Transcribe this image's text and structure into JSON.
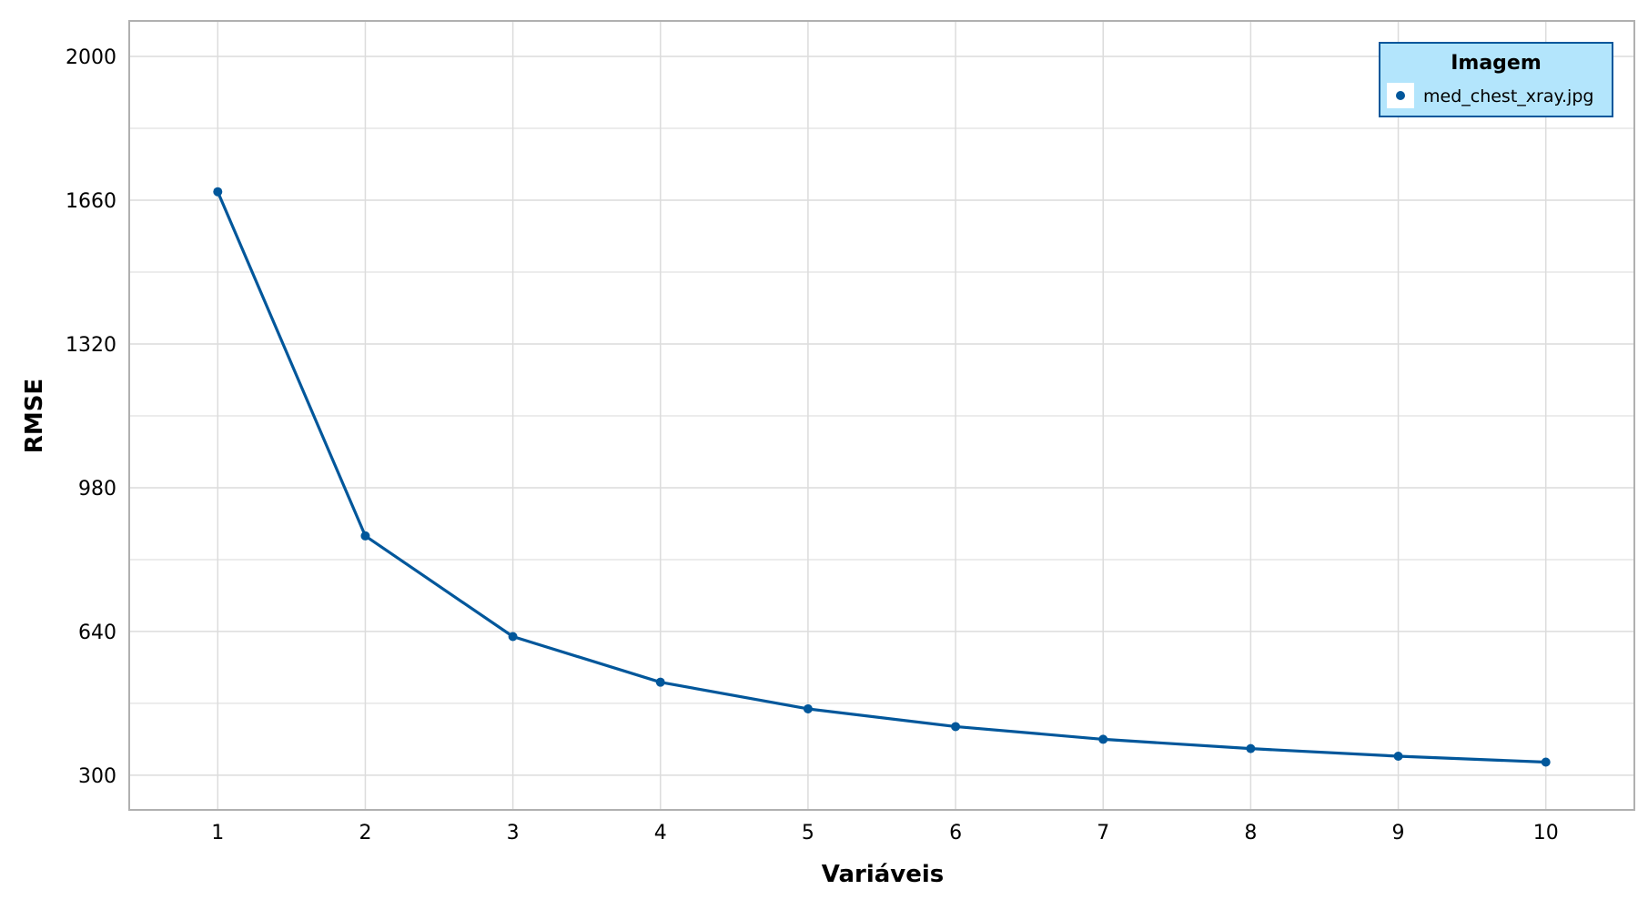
{
  "chart_data": {
    "type": "line",
    "title": "",
    "xlabel": "Variáveis",
    "ylabel": "RMSE",
    "x": [
      1,
      2,
      3,
      4,
      5,
      6,
      7,
      8,
      9,
      10
    ],
    "xlim": [
      0.4,
      10.6
    ],
    "ylim": [
      218,
      2084
    ],
    "x_ticks": [
      "1",
      "2",
      "3",
      "4",
      "5",
      "6",
      "7",
      "8",
      "9",
      "10"
    ],
    "y_ticks": [
      "300",
      "640",
      "980",
      "1320",
      "1660",
      "2000"
    ],
    "y_tick_values": [
      300,
      640,
      980,
      1320,
      1660,
      2000
    ],
    "y_minor_values": [
      470,
      810,
      1150,
      1490,
      1830
    ],
    "grid": true,
    "legend": {
      "title": "Imagem",
      "position": "top-right",
      "background": "#b3e5fc",
      "border": "#01579b"
    },
    "series": [
      {
        "name": "med_chest_xray.jpg",
        "color": "#01579b",
        "values": [
          1680,
          866,
          628,
          520,
          457,
          415,
          385,
          363,
          345,
          331
        ]
      }
    ]
  }
}
